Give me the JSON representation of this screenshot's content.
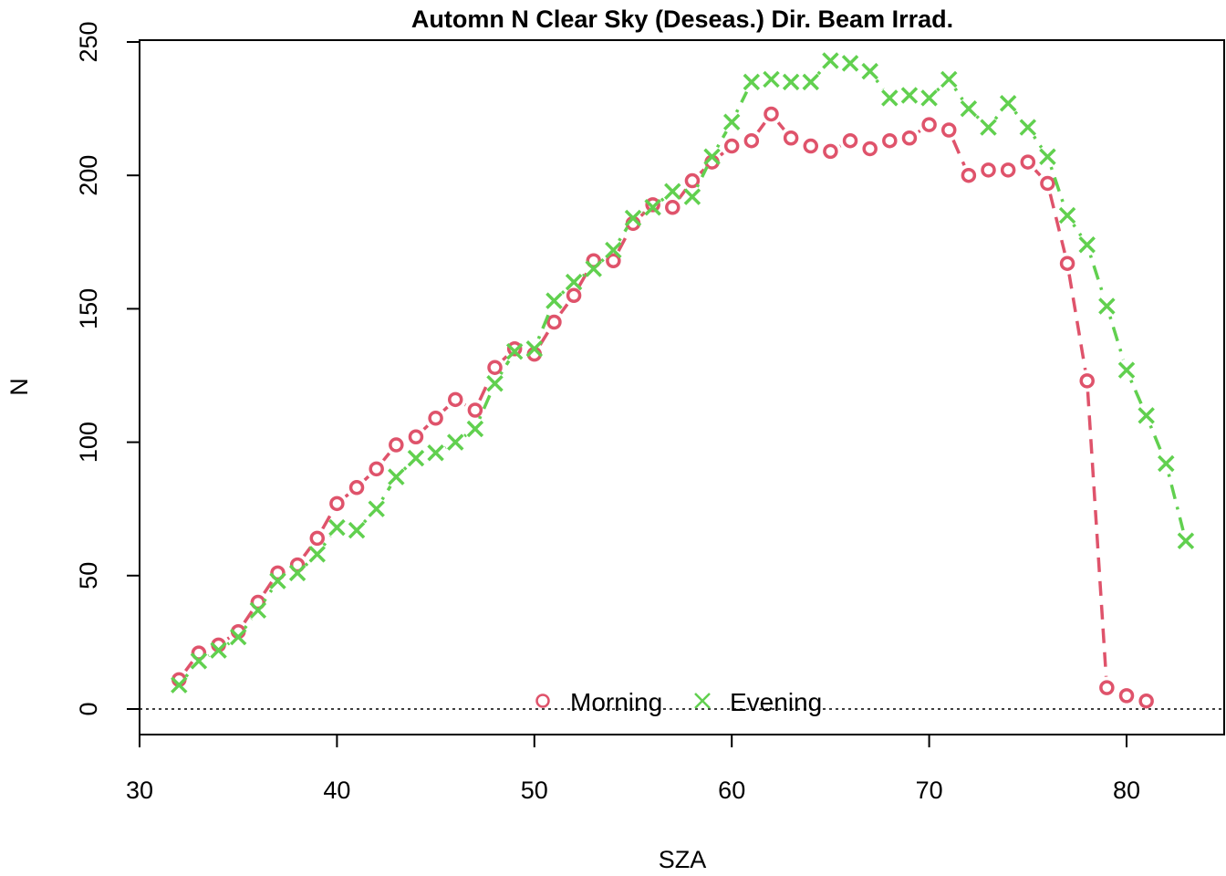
{
  "chart_data": {
    "type": "line",
    "title": "Automn N Clear Sky (Deseas.) Dir. Beam Irrad.",
    "xlabel": "SZA",
    "ylabel": "N",
    "xlim": [
      30,
      84
    ],
    "ylim": [
      -10,
      250
    ],
    "xticks": [
      30,
      40,
      50,
      60,
      70,
      80
    ],
    "yticks": [
      0,
      50,
      100,
      150,
      200,
      250
    ],
    "reference_line": {
      "y": 0,
      "style": "dotted"
    },
    "legend_position": "bottom-center",
    "series": [
      {
        "name": "Morning",
        "marker": "circle",
        "color": "#DF536B",
        "line_style": "dashed",
        "x": [
          32,
          33,
          34,
          35,
          36,
          37,
          38,
          39,
          40,
          41,
          42,
          43,
          44,
          45,
          46,
          47,
          48,
          49,
          50,
          51,
          52,
          53,
          54,
          55,
          56,
          57,
          58,
          59,
          60,
          61,
          62,
          63,
          64,
          65,
          66,
          67,
          68,
          69,
          70,
          71,
          72,
          73,
          74,
          75,
          76,
          77,
          78,
          79,
          80,
          81
        ],
        "y": [
          11,
          21,
          24,
          29,
          40,
          51,
          54,
          64,
          77,
          83,
          90,
          99,
          102,
          109,
          116,
          112,
          128,
          135,
          133,
          145,
          155,
          168,
          168,
          182,
          189,
          188,
          198,
          205,
          211,
          213,
          223,
          214,
          211,
          209,
          213,
          210,
          213,
          214,
          219,
          217,
          200,
          202,
          202,
          205,
          197,
          167,
          123,
          8,
          5,
          3
        ]
      },
      {
        "name": "Evening",
        "marker": "cross",
        "color": "#61D04F",
        "line_style": "dashdot",
        "x": [
          32,
          33,
          34,
          35,
          36,
          37,
          38,
          39,
          40,
          41,
          42,
          43,
          44,
          45,
          46,
          47,
          48,
          49,
          50,
          51,
          52,
          53,
          54,
          55,
          56,
          57,
          58,
          59,
          60,
          61,
          62,
          63,
          64,
          65,
          66,
          67,
          68,
          69,
          70,
          71,
          72,
          73,
          74,
          75,
          76,
          77,
          78,
          79,
          80,
          81,
          82,
          83
        ],
        "y": [
          9,
          18,
          22,
          27,
          37,
          48,
          51,
          58,
          68,
          67,
          75,
          87,
          94,
          96,
          100,
          105,
          122,
          134,
          135,
          153,
          160,
          165,
          172,
          184,
          188,
          194,
          192,
          207,
          220,
          235,
          236,
          235,
          235,
          243,
          242,
          239,
          229,
          230,
          229,
          236,
          225,
          218,
          227,
          218,
          207,
          185,
          174,
          151,
          127,
          110,
          92,
          63
        ]
      }
    ]
  }
}
